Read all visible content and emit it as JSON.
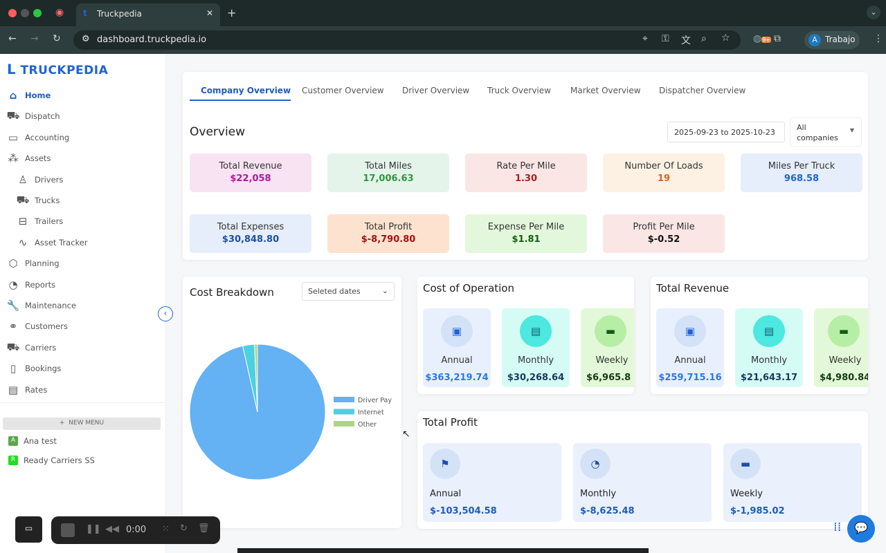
{
  "browser": {
    "tab_title": "Truckpedia",
    "url": "dashboard.truckpedia.io",
    "profile_initial": "A",
    "profile_label": "Trabajo",
    "ext_badge": "9+"
  },
  "sidebar": {
    "logo": "TRUCKPEDIA",
    "items": [
      {
        "label": "Home",
        "icon": "home-icon",
        "active": true
      },
      {
        "label": "Dispatch",
        "icon": "truck-icon"
      },
      {
        "label": "Accounting",
        "icon": "card-icon"
      },
      {
        "label": "Assets",
        "icon": "boxes-icon"
      },
      {
        "label": "Drivers",
        "icon": "person-icon",
        "sub": true
      },
      {
        "label": "Trucks",
        "icon": "truck-icon",
        "sub": true
      },
      {
        "label": "Trailers",
        "icon": "trailer-icon",
        "sub": true
      },
      {
        "label": "Asset Tracker",
        "icon": "route-icon",
        "sub": true
      },
      {
        "label": "Planning",
        "icon": "package-icon"
      },
      {
        "label": "Reports",
        "icon": "pie-icon"
      },
      {
        "label": "Maintenance",
        "icon": "wrench-icon"
      },
      {
        "label": "Customers",
        "icon": "handshake-icon"
      },
      {
        "label": "Carriers",
        "icon": "truck-icon"
      },
      {
        "label": "Bookings",
        "icon": "clipboard-icon"
      },
      {
        "label": "Rates",
        "icon": "invoice-icon"
      }
    ],
    "new_menu": "NEW MENU",
    "workspaces": [
      {
        "initial": "A",
        "label": "Ana test",
        "color": "#5aa84a"
      },
      {
        "initial": "R",
        "label": "Ready Carriers SS",
        "color": "#22dd22"
      }
    ]
  },
  "tabs": [
    "Company Overview",
    "Customer Overview",
    "Driver Overview",
    "Truck Overview",
    "Market Overview",
    "Dispatcher Overview"
  ],
  "overview": {
    "title": "Overview",
    "date_range": "2025-09-23 to 2025-10-23",
    "company_select": "All companies",
    "kpis": [
      {
        "label": "Total Revenue",
        "value": "$22,058",
        "bg": "#f8e3f3",
        "color": "#b0179e"
      },
      {
        "label": "Total Miles",
        "value": "17,006.63",
        "bg": "#e4f4ea",
        "color": "#2a9a3c"
      },
      {
        "label": "Rate Per Mile",
        "value": "1.30",
        "bg": "#fbe6e6",
        "color": "#b31b1b"
      },
      {
        "label": "Number Of Loads",
        "value": "19",
        "bg": "#fdf1e4",
        "color": "#e0621b"
      },
      {
        "label": "Miles Per Truck",
        "value": "968.58",
        "bg": "#e6eefb",
        "color": "#1e63d6"
      },
      {
        "label": "Total Expenses",
        "value": "$30,848.80",
        "bg": "#e6eefb",
        "color": "#1d4fa8"
      },
      {
        "label": "Total Profit",
        "value": "$-8,790.80",
        "bg": "#fde3cf",
        "color": "#a31212"
      },
      {
        "label": "Expense Per Mile",
        "value": "$1.81",
        "bg": "#e3f7dc",
        "color": "#155e15"
      },
      {
        "label": "Profit Per Mile",
        "value": "$-0.52",
        "bg": "#fbe6e6",
        "color": "#111"
      }
    ]
  },
  "cost_breakdown": {
    "title": "Cost Breakdown",
    "select": "Seleted dates"
  },
  "chart_data": {
    "type": "pie",
    "categories": [
      "Driver Pay",
      "Internet",
      "Other"
    ],
    "values": [
      96.5,
      2.8,
      0.7
    ],
    "colors": [
      "#64b1f3",
      "#4dd0e1",
      "#aed581"
    ],
    "legend": "right"
  },
  "cost_of_operation": {
    "title": "Cost of Operation",
    "items": [
      {
        "label": "Annual",
        "value": "$363,219.74"
      },
      {
        "label": "Monthly",
        "value": "$30,268.64"
      },
      {
        "label": "Weekly",
        "value": "$6,965.8"
      }
    ]
  },
  "total_revenue": {
    "title": "Total Revenue",
    "items": [
      {
        "label": "Annual",
        "value": "$259,715.16"
      },
      {
        "label": "Monthly",
        "value": "$21,643.17"
      },
      {
        "label": "Weekly",
        "value": "$4,980.84"
      }
    ]
  },
  "total_profit": {
    "title": "Total Profit",
    "items": [
      {
        "label": "Annual",
        "value": "$-103,504.58"
      },
      {
        "label": "Monthly",
        "value": "$-8,625.48"
      },
      {
        "label": "Weekly",
        "value": "$-1,985.02"
      }
    ]
  },
  "recorder": {
    "time": "0:00"
  }
}
